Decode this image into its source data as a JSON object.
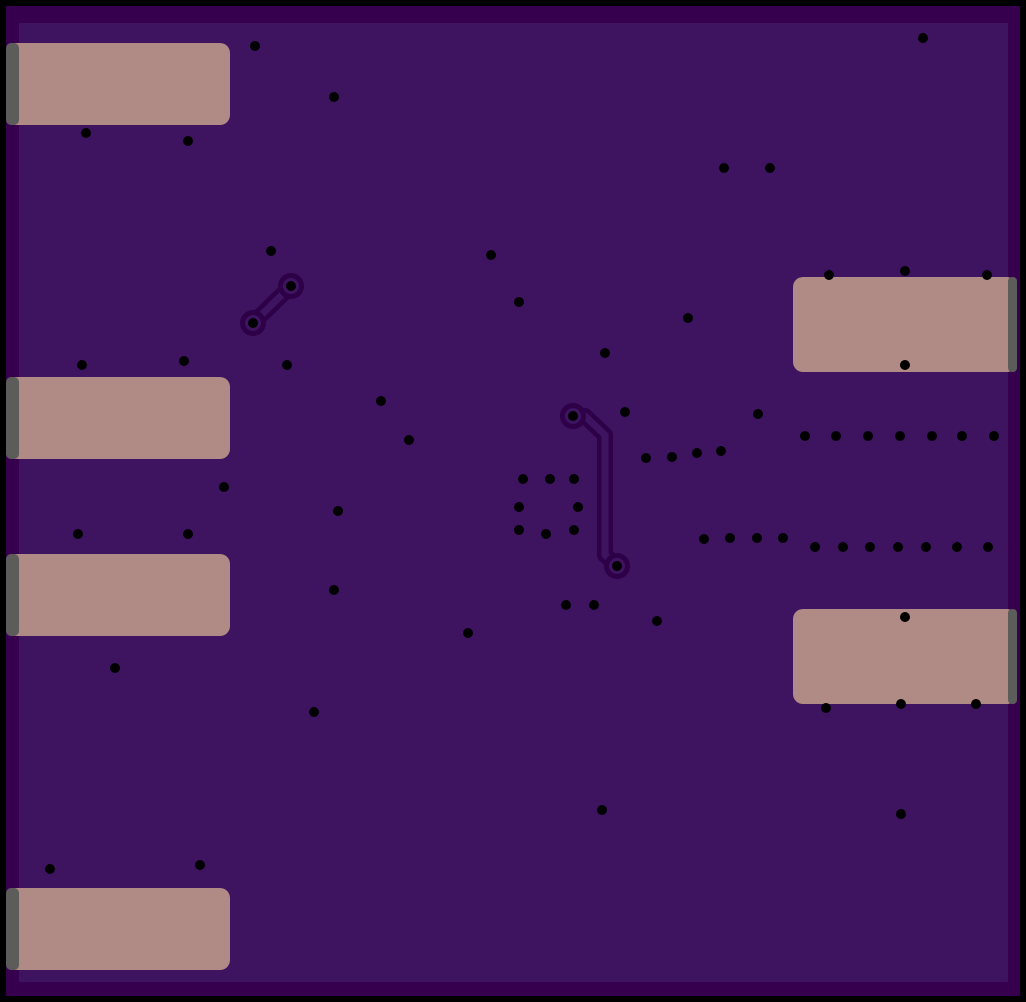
{
  "board": {
    "colors": {
      "frame": "#000000",
      "outer_band": "#36004f",
      "copper_fill": "#3e1360",
      "pad": "#b08a84",
      "pad_edge": "#5c5c5a",
      "trace_outline": "#2e0048",
      "drill": "#000000"
    },
    "layers": [
      "board-outline",
      "copper-pour",
      "pads",
      "traces",
      "drill-holes"
    ]
  }
}
